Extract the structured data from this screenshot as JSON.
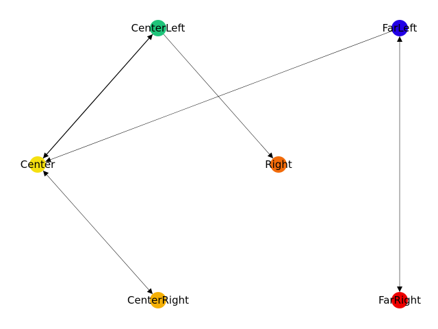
{
  "graph": {
    "nodes": [
      {
        "id": "centerleft",
        "label": "CenterLeft",
        "color": "#1ec47a"
      },
      {
        "id": "farleft",
        "label": "FarLeft",
        "color": "#2200e6"
      },
      {
        "id": "center",
        "label": "Center",
        "color": "#f5e010"
      },
      {
        "id": "right",
        "label": "Right",
        "color": "#f26b0a"
      },
      {
        "id": "centerright",
        "label": "CenterRight",
        "color": "#f5b005"
      },
      {
        "id": "farright",
        "label": "FarRight",
        "color": "#ee0000"
      }
    ],
    "edges": [
      {
        "source": "centerleft",
        "target": "center",
        "bidirectional": true
      },
      {
        "source": "centerleft",
        "target": "right",
        "bidirectional": false
      },
      {
        "source": "farleft",
        "target": "center",
        "bidirectional": false
      },
      {
        "source": "center",
        "target": "centerright",
        "bidirectional": true
      },
      {
        "source": "farleft",
        "target": "farright",
        "bidirectional": true
      }
    ]
  }
}
